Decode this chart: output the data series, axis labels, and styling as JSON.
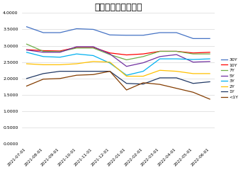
{
  "title": "国债招投标利率走势",
  "x_labels": [
    "2021-07-01",
    "2021-08-01",
    "2021-09-01",
    "2021-10-01",
    "2021-11-01",
    "2021-12-01",
    "2022-01-01",
    "2022-02-01",
    "2022-03-01",
    "2022-04-01",
    "2022-05-01",
    "2022-06-01"
  ],
  "series": {
    "30Y": {
      "color": "#4472C4",
      "values": [
        3.58,
        3.4,
        3.4,
        3.52,
        3.5,
        3.33,
        3.32,
        3.32,
        3.4,
        3.4,
        3.22,
        3.22
      ]
    },
    "10Y": {
      "color": "#FF0000",
      "values": [
        2.88,
        2.85,
        2.84,
        2.95,
        2.95,
        2.78,
        2.72,
        2.75,
        2.83,
        2.83,
        2.78,
        2.8
      ]
    },
    "7Y": {
      "color": "#70AD47",
      "values": [
        3.05,
        2.83,
        2.82,
        2.93,
        2.93,
        2.73,
        2.57,
        2.67,
        2.83,
        2.83,
        2.75,
        2.75
      ]
    },
    "5Y": {
      "color": "#7030A0",
      "values": [
        2.87,
        2.8,
        2.8,
        2.97,
        2.97,
        2.75,
        2.37,
        2.48,
        2.67,
        2.73,
        2.5,
        2.52
      ]
    },
    "3Y": {
      "color": "#00B0F0",
      "values": [
        2.8,
        2.67,
        2.65,
        2.75,
        2.7,
        2.47,
        2.1,
        2.22,
        2.6,
        2.6,
        2.58,
        2.6
      ]
    },
    "2Y": {
      "color": "#FFC000",
      "values": [
        2.45,
        2.42,
        2.42,
        2.45,
        2.52,
        2.5,
        2.07,
        2.07,
        2.25,
        2.22,
        2.15,
        2.15
      ]
    },
    "1Y": {
      "color": "#203864",
      "values": [
        2.0,
        2.15,
        2.22,
        2.22,
        2.22,
        2.22,
        1.85,
        1.83,
        2.02,
        2.02,
        1.85,
        1.9
      ]
    },
    "<1Y": {
      "color": "#833C00",
      "values": [
        1.77,
        1.98,
        2.0,
        2.1,
        2.12,
        2.22,
        1.65,
        1.87,
        1.82,
        1.7,
        1.58,
        1.37
      ]
    }
  },
  "ylim": [
    0.0,
    4.0
  ],
  "yticks": [
    0.0,
    0.5,
    1.0,
    1.5,
    2.0,
    2.5,
    3.0,
    3.5,
    4.0
  ],
  "ytick_labels": [
    "0.0000",
    "0.5000",
    "1.0000",
    "1.5000",
    "2.0000",
    "2.5000",
    "3.0000",
    "3.5000",
    "4.0000"
  ],
  "background_color": "#FFFFFF",
  "grid_color": "#D9D9D9",
  "title_fontsize": 9
}
